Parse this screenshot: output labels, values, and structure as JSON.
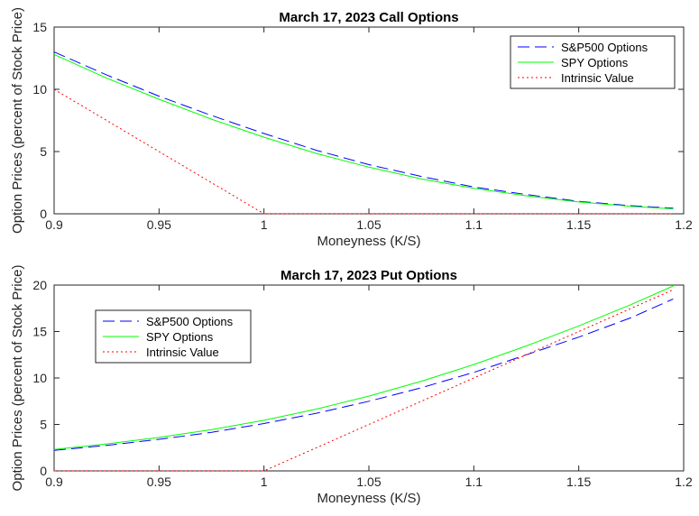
{
  "chart_data": [
    {
      "type": "line",
      "title": "March 17, 2023 Call Options",
      "xlabel": "Moneyness (K/S)",
      "ylabel": "Option Prices (percent of Stock Price)",
      "xlim": [
        0.9,
        1.2
      ],
      "ylim": [
        0,
        15
      ],
      "xticks": [
        0.9,
        0.95,
        1,
        1.05,
        1.1,
        1.15,
        1.2
      ],
      "xtick_labels": [
        "0.9",
        "0.95",
        "1",
        "1.05",
        "1.1",
        "1.15",
        "1.2"
      ],
      "yticks": [
        0,
        5,
        10,
        15
      ],
      "ytick_labels": [
        "0",
        "5",
        "10",
        "15"
      ],
      "grid": false,
      "legend_position": "top-right",
      "x": [
        0.9,
        0.925,
        0.95,
        0.975,
        1.0,
        1.025,
        1.05,
        1.075,
        1.1,
        1.125,
        1.15,
        1.175,
        1.195
      ],
      "series": [
        {
          "name": "S&P500 Options",
          "style": "dashed",
          "color": "#0000ff",
          "values": [
            13.0,
            11.15,
            9.45,
            7.9,
            6.45,
            5.1,
            3.95,
            3.0,
            2.15,
            1.55,
            1.0,
            0.65,
            0.45
          ]
        },
        {
          "name": "SPY Options",
          "style": "solid",
          "color": "#00ff00",
          "values": [
            12.8,
            10.9,
            9.2,
            7.6,
            6.15,
            4.85,
            3.75,
            2.8,
            2.05,
            1.45,
            0.95,
            0.6,
            0.4
          ]
        },
        {
          "name": "Intrinsic Value",
          "style": "dotted",
          "color": "#ff0000",
          "values": [
            10.0,
            7.5,
            5.0,
            2.5,
            0.0,
            0.0,
            0.0,
            0.0,
            0.0,
            0.0,
            0.0,
            0.0,
            0.0
          ]
        }
      ]
    },
    {
      "type": "line",
      "title": "March 17, 2023 Put Options",
      "xlabel": "Moneyness (K/S)",
      "ylabel": "Option Prices (percent of Stock Price)",
      "xlim": [
        0.9,
        1.2
      ],
      "ylim": [
        0,
        20
      ],
      "xticks": [
        0.9,
        0.95,
        1,
        1.05,
        1.1,
        1.15,
        1.2
      ],
      "xtick_labels": [
        "0.9",
        "0.95",
        "1",
        "1.05",
        "1.1",
        "1.15",
        "1.2"
      ],
      "yticks": [
        0,
        5,
        10,
        15,
        20
      ],
      "ytick_labels": [
        "0",
        "5",
        "10",
        "15",
        "20"
      ],
      "grid": false,
      "legend_position": "top-left",
      "x": [
        0.9,
        0.925,
        0.95,
        0.975,
        1.0,
        1.025,
        1.05,
        1.075,
        1.1,
        1.125,
        1.15,
        1.175,
        1.195
      ],
      "series": [
        {
          "name": "S&P500 Options",
          "style": "dashed",
          "color": "#0000ff",
          "values": [
            2.2,
            2.75,
            3.4,
            4.15,
            5.1,
            6.2,
            7.5,
            8.95,
            10.6,
            12.5,
            14.4,
            16.5,
            18.5
          ]
        },
        {
          "name": "SPY Options",
          "style": "solid",
          "color": "#00ff00",
          "values": [
            2.3,
            2.9,
            3.6,
            4.45,
            5.45,
            6.65,
            8.05,
            9.65,
            11.45,
            13.45,
            15.6,
            17.9,
            19.9
          ]
        },
        {
          "name": "Intrinsic Value",
          "style": "dotted",
          "color": "#ff0000",
          "values": [
            0.0,
            0.0,
            0.0,
            0.0,
            0.0,
            2.5,
            5.0,
            7.5,
            10.0,
            12.5,
            15.0,
            17.5,
            19.5
          ]
        }
      ]
    }
  ]
}
